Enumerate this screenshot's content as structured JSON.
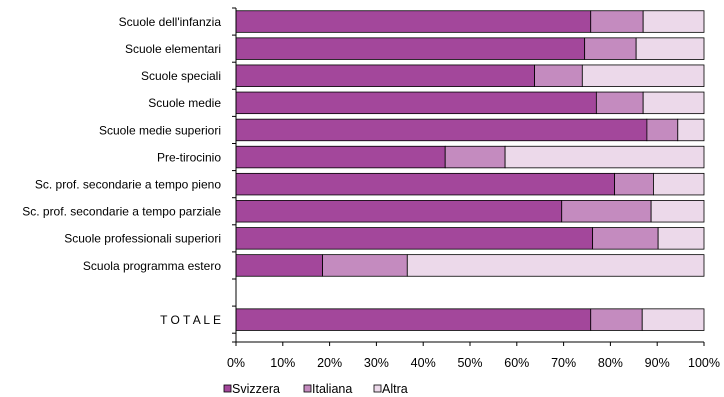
{
  "chart_data": {
    "type": "bar",
    "orientation": "horizontal",
    "stacked": "percent",
    "categories": [
      "Scuole dell'infanzia",
      "Scuole elementari",
      "Scuole speciali",
      "Scuole medie",
      "Scuole medie superiori",
      "Pre-tirocinio",
      "Sc. prof. secondarie a tempo pieno",
      "Sc. prof. secondarie a tempo parziale",
      "Scuole professionali superiori",
      "Scuola programma estero",
      "",
      "T O T A L E"
    ],
    "series": [
      {
        "name": "Svizzera",
        "color": "#a3479b",
        "values": [
          75.8,
          74.5,
          63.8,
          77.0,
          87.8,
          44.7,
          80.9,
          69.6,
          76.2,
          18.5,
          null,
          75.8
        ]
      },
      {
        "name": "Italiana",
        "color": "#c48bbf",
        "values": [
          11.2,
          11.0,
          10.2,
          10.0,
          6.6,
          12.8,
          8.3,
          19.1,
          14.0,
          18.1,
          null,
          11.0
        ]
      },
      {
        "name": "Altra",
        "color": "#ecd9ea",
        "values": [
          13.0,
          14.5,
          26.0,
          13.0,
          5.6,
          42.5,
          10.8,
          11.3,
          9.8,
          63.4,
          null,
          13.2
        ]
      }
    ],
    "x_ticks": [
      "0%",
      "10%",
      "20%",
      "30%",
      "40%",
      "50%",
      "60%",
      "70%",
      "80%",
      "90%",
      "100%"
    ],
    "xlim": [
      0,
      100
    ],
    "grid": false,
    "legend_position": "bottom-left"
  }
}
